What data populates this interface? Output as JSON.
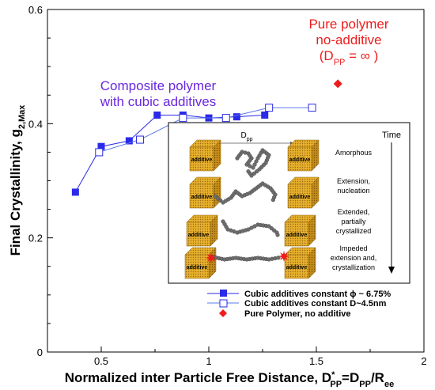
{
  "chart_data": {
    "type": "scatter",
    "title": "",
    "xlabel": {
      "main": "Normalized inter Particle Free Distance, D",
      "sup": "*",
      "sub1": "PP",
      "eq": "=D",
      "sub2": "PP",
      "slash": "/R",
      "sub3": "ee"
    },
    "ylabel": {
      "main": "Final Crystallinity, g",
      "sub": "2,Max"
    },
    "xlim": [
      0.25,
      2.0
    ],
    "ylim": [
      0.0,
      0.6
    ],
    "xticks": [
      0.5,
      1.0,
      1.5,
      2.0
    ],
    "xtick_labels": [
      "0.5",
      "1",
      "1.5",
      "2"
    ],
    "yticks": [
      0.0,
      0.2,
      0.4,
      0.6
    ],
    "ytick_labels": [
      "0",
      "0.2",
      "0.4",
      "0.6"
    ],
    "grid": false,
    "legend_position": "bottom-right",
    "series": [
      {
        "name": "Cubic additives constant ϕ ~ 6.75%",
        "marker": "filled-square",
        "color": "#2a2ae8",
        "x": [
          0.38,
          0.5,
          0.63,
          0.76,
          0.88,
          1.0,
          1.13,
          1.26
        ],
        "y": [
          0.28,
          0.36,
          0.37,
          0.415,
          0.415,
          0.41,
          0.412,
          0.415
        ]
      },
      {
        "name": "Cubic additives constant D~4.5nm",
        "marker": "open-square",
        "color": "#5a78e8",
        "x": [
          0.49,
          0.68,
          0.88,
          1.08,
          1.28,
          1.48
        ],
        "y": [
          0.35,
          0.372,
          0.41,
          0.41,
          0.428,
          0.428
        ]
      },
      {
        "name": "Pure Polymer, no additive",
        "marker": "filled-diamond",
        "color": "#ee1c1c",
        "x": [
          1.6
        ],
        "y": [
          0.47
        ]
      }
    ],
    "annotations": {
      "composite_line1": "Composite polymer",
      "composite_line2": "with cubic additives",
      "pure_line1": "Pure polymer",
      "pure_line2": "no-additive",
      "pure_line3_pre": "(D",
      "pure_line3_sub": "PP",
      "pure_line3_post": " = ∞ )"
    },
    "inset": {
      "time_label": "Time",
      "dpp_label": "D",
      "dpp_sub": "pp",
      "cube_label": "additive",
      "stages": [
        "Amorphous",
        "Extension,\nnucleation",
        "Extended,\npartially\ncrystallized",
        "Impeded\nextension and,\ncrystallization"
      ]
    },
    "colors": {
      "primary_series": "#2a2ae8",
      "secondary_series": "#5a78e8",
      "pure": "#ee1c1c",
      "annotation_blue": "#6a28e0",
      "cube": "#e3ac2a"
    }
  }
}
